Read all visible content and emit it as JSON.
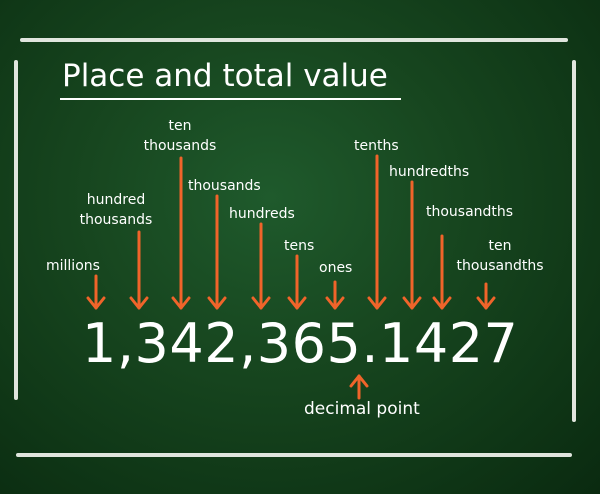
{
  "title": "Place and total value",
  "number": "1,342,365.1427",
  "places": [
    {
      "name": "millions",
      "label": "millions"
    },
    {
      "name": "hundred-thousands",
      "label": "hundred\nthousands"
    },
    {
      "name": "ten-thousands",
      "label": "ten\nthousands"
    },
    {
      "name": "thousands",
      "label": "thousands"
    },
    {
      "name": "hundreds",
      "label": "hundreds"
    },
    {
      "name": "tens",
      "label": "tens"
    },
    {
      "name": "ones",
      "label": "ones"
    },
    {
      "name": "tenths",
      "label": "tenths"
    },
    {
      "name": "hundredths",
      "label": "hundredths"
    },
    {
      "name": "thousandths",
      "label": "thousandths"
    },
    {
      "name": "ten-thousandths",
      "label": "ten\nthousandths"
    }
  ],
  "decimal_point_label": "decimal point",
  "colors": {
    "board": "#17461f",
    "chalk": "#f2f4ef",
    "arrow": "#f0642a",
    "text": "#ffffff"
  }
}
